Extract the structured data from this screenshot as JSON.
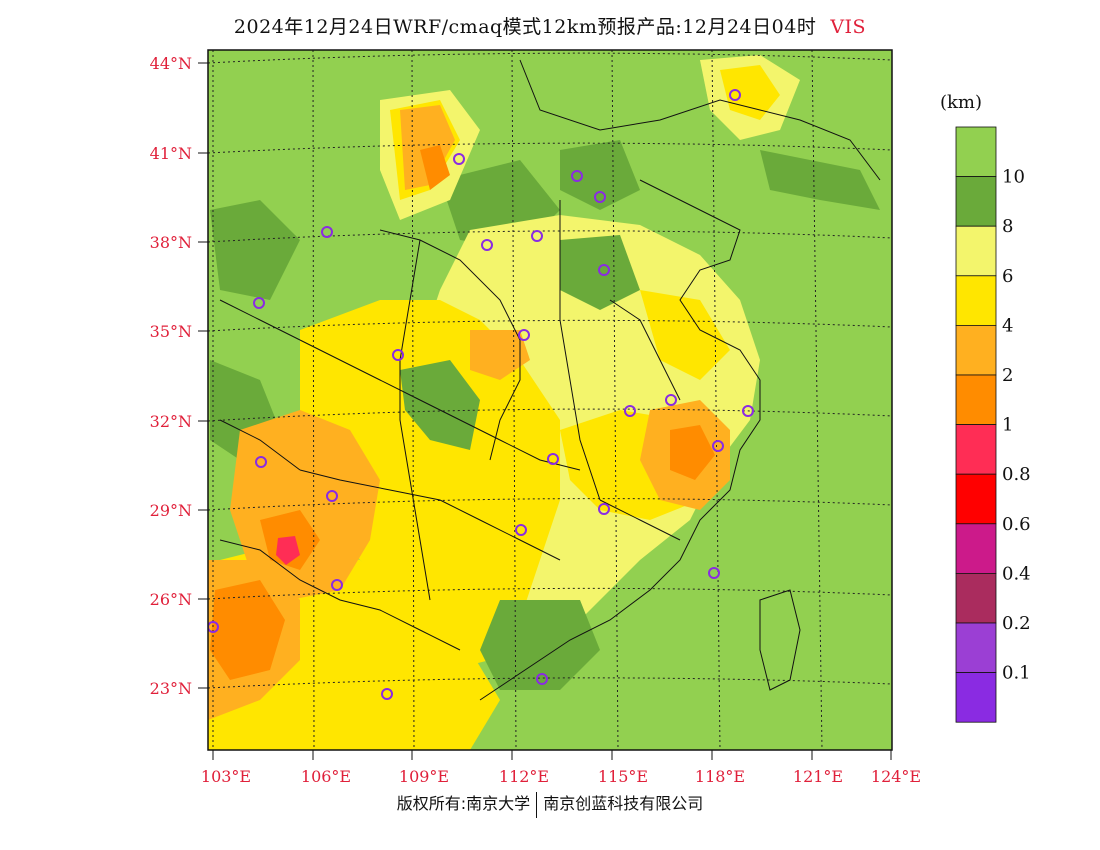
{
  "title": {
    "text": "2024年12月24日WRF/cmaq模式12km预报产品:12月24日04时",
    "variable": "VIS"
  },
  "map": {
    "lat_labels": [
      "44°N",
      "41°N",
      "38°N",
      "35°N",
      "32°N",
      "29°N",
      "26°N",
      "23°N"
    ],
    "lon_labels": [
      "103°E",
      "106°E",
      "109°E",
      "112°E",
      "115°E",
      "118°E",
      "121°E",
      "124°E"
    ]
  },
  "colorbar": {
    "unit": "(km)",
    "levels": [
      {
        "label": "10",
        "color": "#92d050"
      },
      {
        "label": "8",
        "color": "#6aaa3a"
      },
      {
        "label": "6",
        "color": "#f3f56c"
      },
      {
        "label": "4",
        "color": "#ffe600"
      },
      {
        "label": "2",
        "color": "#ffb020"
      },
      {
        "label": "1",
        "color": "#ff8c00"
      },
      {
        "label": "0.8",
        "color": "#ff2d55"
      },
      {
        "label": "0.6",
        "color": "#ff0000"
      },
      {
        "label": "0.4",
        "color": "#cc1a8a"
      },
      {
        "label": "0.2",
        "color": "#aa2c5e"
      },
      {
        "label": "0.1",
        "color": "#9b3fd4"
      },
      {
        "label": "",
        "color": "#8a2be2"
      }
    ]
  },
  "footer": {
    "left": "版权所有:南京大学",
    "right": "南京创蓝科技有限公司"
  }
}
